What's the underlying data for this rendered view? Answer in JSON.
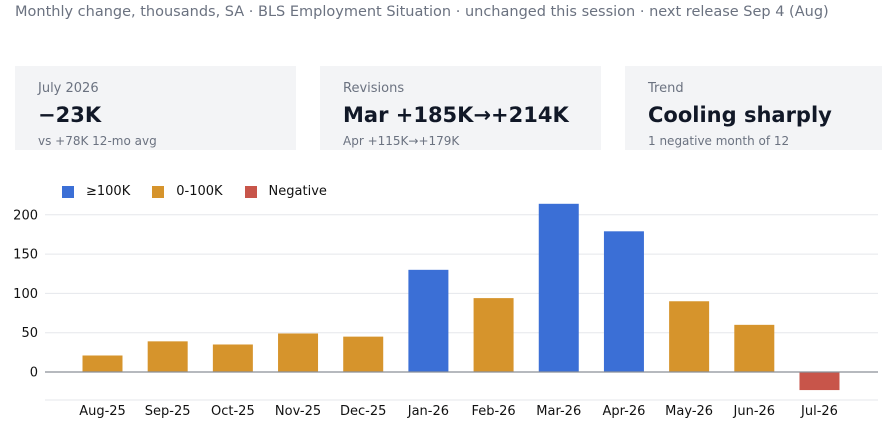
{
  "subtitle": "Monthly change, thousands, SA · BLS Employment Situation · unchanged this session · next release Sep 4 (Aug)",
  "cards": [
    {
      "label": "July 2026",
      "value": "−23K",
      "sub": "vs +78K 12-mo avg"
    },
    {
      "label": "Revisions",
      "value": "Mar +185K→+214K",
      "sub": "Apr +115K→+179K"
    },
    {
      "label": "Trend",
      "value": "Cooling sharply",
      "sub": "1 negative month of 12"
    }
  ],
  "legend": [
    {
      "label": "≥100K",
      "color": "#3b6fd6"
    },
    {
      "label": "0-100K",
      "color": "#d6942c"
    },
    {
      "label": "Negative",
      "color": "#c8554a"
    }
  ],
  "chart_data": {
    "type": "bar",
    "categories": [
      "Aug-25",
      "Sep-25",
      "Oct-25",
      "Nov-25",
      "Dec-25",
      "Jan-26",
      "Feb-26",
      "Mar-26",
      "Apr-26",
      "May-26",
      "Jun-26",
      "Jul-26"
    ],
    "values": [
      21,
      39,
      35,
      49,
      45,
      130,
      94,
      214,
      179,
      90,
      60,
      -23
    ],
    "ylim": [
      -35,
      220
    ],
    "yticks": [
      0,
      50,
      100,
      150,
      200
    ],
    "grid": true,
    "legend_position": "top-left"
  }
}
